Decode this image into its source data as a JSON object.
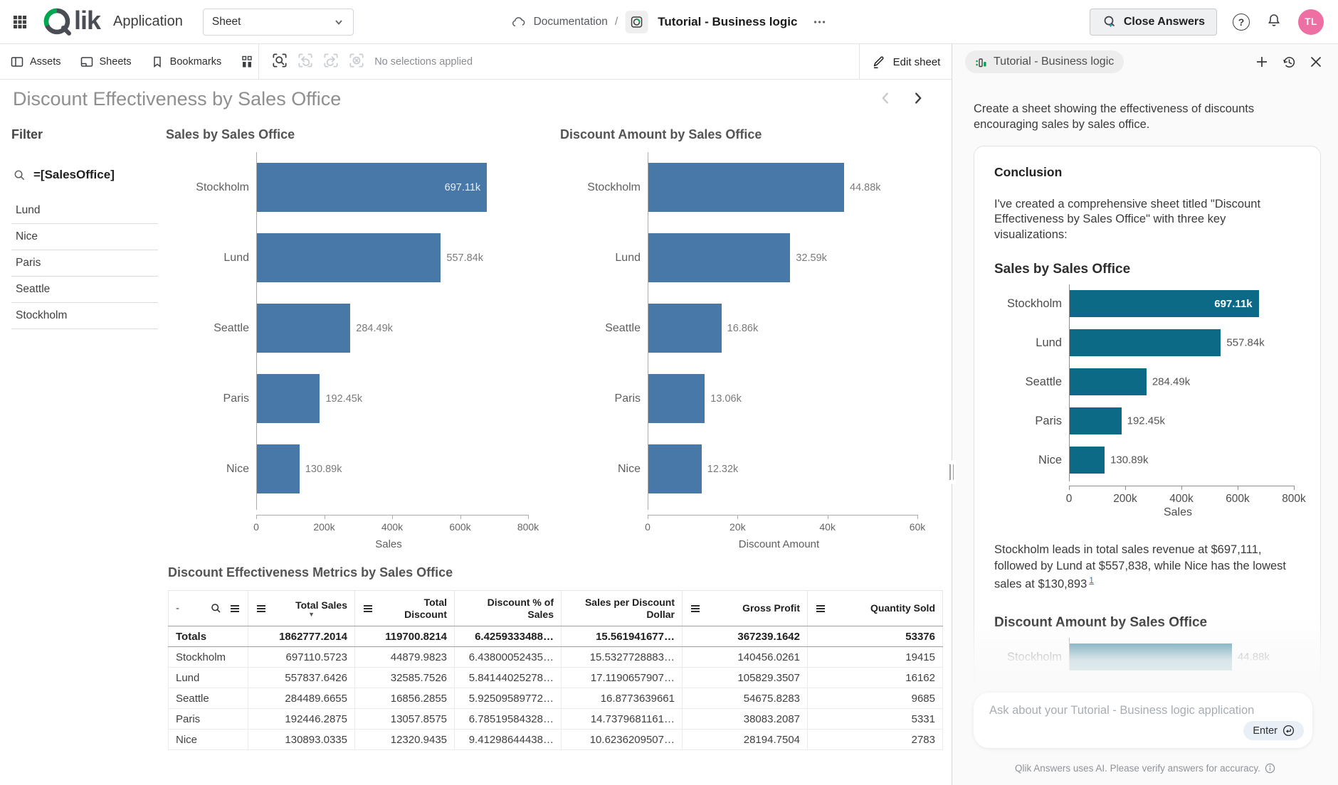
{
  "topbar": {
    "app_label": "Application",
    "sheet_selector_value": "Sheet",
    "breadcrumb": {
      "documentation": "Documentation",
      "separator": "/",
      "app_name": "Tutorial - Business logic"
    },
    "close_answers_label": "Close Answers",
    "avatar_initials": "TL"
  },
  "toolbar": {
    "assets_label": "Assets",
    "sheets_label": "Sheets",
    "bookmarks_label": "Bookmarks",
    "selections_status": "No selections applied",
    "edit_sheet_label": "Edit sheet"
  },
  "sheet": {
    "title": "Discount Effectiveness by Sales Office"
  },
  "filter": {
    "heading": "Filter",
    "search_expression": "=[SalesOffice]",
    "items": [
      "Lund",
      "Nice",
      "Paris",
      "Seattle",
      "Stockholm"
    ]
  },
  "chart_data": [
    {
      "id": "sales-by-office",
      "type": "bar",
      "orientation": "horizontal",
      "title": "Sales by Sales Office",
      "categories": [
        "Stockholm",
        "Lund",
        "Seattle",
        "Paris",
        "Nice"
      ],
      "values": [
        697110.5723,
        557837.6426,
        284489.6655,
        192446.2875,
        130893.0335
      ],
      "value_labels": [
        "697.11k",
        "557.84k",
        "284.49k",
        "192.45k",
        "130.89k"
      ],
      "inside_label_indices": [
        0
      ],
      "xlabel": "Sales",
      "xmax": 800000,
      "ticks": [
        {
          "label": "0",
          "value": 0
        },
        {
          "label": "200k",
          "value": 200000
        },
        {
          "label": "400k",
          "value": 400000
        },
        {
          "label": "600k",
          "value": 600000
        },
        {
          "label": "800k",
          "value": 800000
        }
      ],
      "grid": false,
      "bar_color": "#4878a8",
      "show_axis": true,
      "interactable_bars": true
    },
    {
      "id": "discount-by-office",
      "type": "bar",
      "orientation": "horizontal",
      "title": "Discount Amount by Sales Office",
      "categories": [
        "Stockholm",
        "Lund",
        "Seattle",
        "Paris",
        "Nice"
      ],
      "values": [
        44879.9823,
        32585.7526,
        16856.2855,
        13057.8575,
        12320.9435
      ],
      "value_labels": [
        "44.88k",
        "32.59k",
        "16.86k",
        "13.06k",
        "12.32k"
      ],
      "inside_label_indices": [],
      "xlabel": "Discount Amount",
      "xmax": 60000,
      "ticks": [
        {
          "label": "0",
          "value": 0
        },
        {
          "label": "20k",
          "value": 20000
        },
        {
          "label": "40k",
          "value": 40000
        },
        {
          "label": "60k",
          "value": 60000
        }
      ],
      "grid": false,
      "bar_color": "#4878a8",
      "show_axis": true,
      "interactable_bars": true
    },
    {
      "id": "panel-sales-by-office",
      "type": "bar",
      "orientation": "horizontal",
      "title": "Sales by Sales Office",
      "categories": [
        "Stockholm",
        "Lund",
        "Seattle",
        "Paris",
        "Nice"
      ],
      "values": [
        697110.5723,
        557837.6426,
        284489.6655,
        192446.2875,
        130893.0335
      ],
      "value_labels": [
        "697.11k",
        "557.84k",
        "284.49k",
        "192.45k",
        "130.89k"
      ],
      "inside_label_indices": [
        0
      ],
      "xlabel": "Sales",
      "xmax": 800000,
      "ticks": [
        {
          "label": "0",
          "value": 0
        },
        {
          "label": "200k",
          "value": 200000
        },
        {
          "label": "400k",
          "value": 400000
        },
        {
          "label": "600k",
          "value": 600000
        },
        {
          "label": "800k",
          "value": 800000
        }
      ],
      "grid": false,
      "bar_color": "#0d6a87",
      "show_axis": true,
      "interactable_bars": false
    },
    {
      "id": "panel-discount-by-office",
      "type": "bar",
      "orientation": "horizontal",
      "title": "Discount Amount by Sales Office",
      "note": "partially visible, clipped by panel fade",
      "categories": [
        "Stockholm"
      ],
      "values": [
        44879.9823
      ],
      "value_labels": [
        "44.88k"
      ],
      "inside_label_indices": [],
      "xlabel": "",
      "xmax": 60000,
      "ticks": [],
      "grid": false,
      "bar_color": "#0d6a87",
      "show_axis": false,
      "interactable_bars": false
    }
  ],
  "table": {
    "title": "Discount Effectiveness Metrics by Sales Office",
    "columns": [
      {
        "label": "-",
        "search_icon": true,
        "menu_icon": true
      },
      {
        "label": "Total Sales",
        "menu_icon": true,
        "sort": "desc"
      },
      {
        "label": "Total Discount",
        "menu_icon": true
      },
      {
        "label": "Discount % of Sales"
      },
      {
        "label": "Sales per Discount Dollar"
      },
      {
        "label": "Gross Profit",
        "menu_icon": true
      },
      {
        "label": "Quantity Sold",
        "menu_icon": true
      }
    ],
    "totals_row": [
      "Totals",
      "1862777.2014",
      "119700.8214",
      "6.4259333488…",
      "15.561941677…",
      "367239.1642",
      "53376"
    ],
    "rows": [
      [
        "Stockholm",
        "697110.5723",
        "44879.9823",
        "6.43800052435…",
        "15.5327728883…",
        "140456.0261",
        "19415"
      ],
      [
        "Lund",
        "557837.6426",
        "32585.7526",
        "5.84144025278…",
        "17.1190657907…",
        "105829.3507",
        "16162"
      ],
      [
        "Seattle",
        "284489.6655",
        "16856.2855",
        "5.92509589772…",
        "16.8773639661",
        "54675.8283",
        "9685"
      ],
      [
        "Paris",
        "192446.2875",
        "13057.8575",
        "6.78519584328…",
        "14.7379681161…",
        "38083.2087",
        "5331"
      ],
      [
        "Nice",
        "130893.0335",
        "12320.9435",
        "9.41298644438…",
        "10.6236209507…",
        "28194.7504",
        "2783"
      ]
    ]
  },
  "panel": {
    "app_chip_label": "Tutorial - Business logic",
    "prompt": "Create a sheet showing the effectiveness of discounts encouraging sales by sales office.",
    "conclusion": {
      "heading": "Conclusion",
      "intro": "I've created a comprehensive sheet titled \"Discount Effectiveness by Sales Office\" with three key visualizations:",
      "chart1_heading": "Sales by Sales Office",
      "insight": "Stockholm leads in total sales revenue at $697,111, followed by Lund at $557,838, while Nice has the lowest sales at $130,893",
      "footnote_ref": "1",
      "chart2_heading": "Discount Amount by Sales Office"
    },
    "input_placeholder": "Ask about your Tutorial - Business logic application",
    "enter_label": "Enter",
    "disclaimer": "Qlik Answers uses AI. Please verify answers for accuracy."
  },
  "icons": {
    "ellipsis": "⋯",
    "sort_desc_caret": "▼",
    "header_dash": "-"
  },
  "colors": {
    "main_bar": "#4878a8",
    "panel_bar": "#0d6a87",
    "qlik_green": "#00a650",
    "avatar_pink": "#ee6fa3",
    "link_blue": "#3a72c4"
  }
}
